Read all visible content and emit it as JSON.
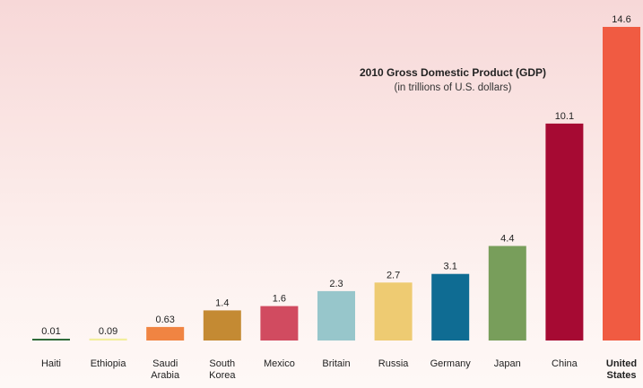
{
  "chart_data": {
    "type": "bar",
    "title": "2010 Gross Domestic Product (GDP)",
    "subtitle": "(in trillions of U.S. dollars)",
    "xlabel": "",
    "ylabel": "",
    "ylim": [
      0,
      14.6
    ],
    "grid": false,
    "legend": "none",
    "categories": [
      [
        "Haiti"
      ],
      [
        "Ethiopia"
      ],
      [
        "Saudi",
        "Arabia"
      ],
      [
        "South",
        "Korea"
      ],
      [
        "Mexico"
      ],
      [
        "Britain"
      ],
      [
        "Russia"
      ],
      [
        "Germany"
      ],
      [
        "Japan"
      ],
      [
        "China"
      ],
      [
        "United",
        "States"
      ]
    ],
    "values": [
      0.01,
      0.09,
      0.63,
      1.4,
      1.6,
      2.3,
      2.7,
      3.1,
      4.4,
      10.1,
      14.6
    ],
    "value_labels": [
      "0.01",
      "0.09",
      "0.63",
      "1.4",
      "1.6",
      "2.3",
      "2.7",
      "3.1",
      "4.4",
      "10.1",
      "14.6"
    ],
    "colors": [
      "#2f6b3a",
      "#f2ee9c",
      "#f08442",
      "#c48a33",
      "#d14b60",
      "#97c6cb",
      "#eecb72",
      "#0f6c93",
      "#789e5b",
      "#a60a33",
      "#f05b42"
    ],
    "highlight_category": 10
  }
}
